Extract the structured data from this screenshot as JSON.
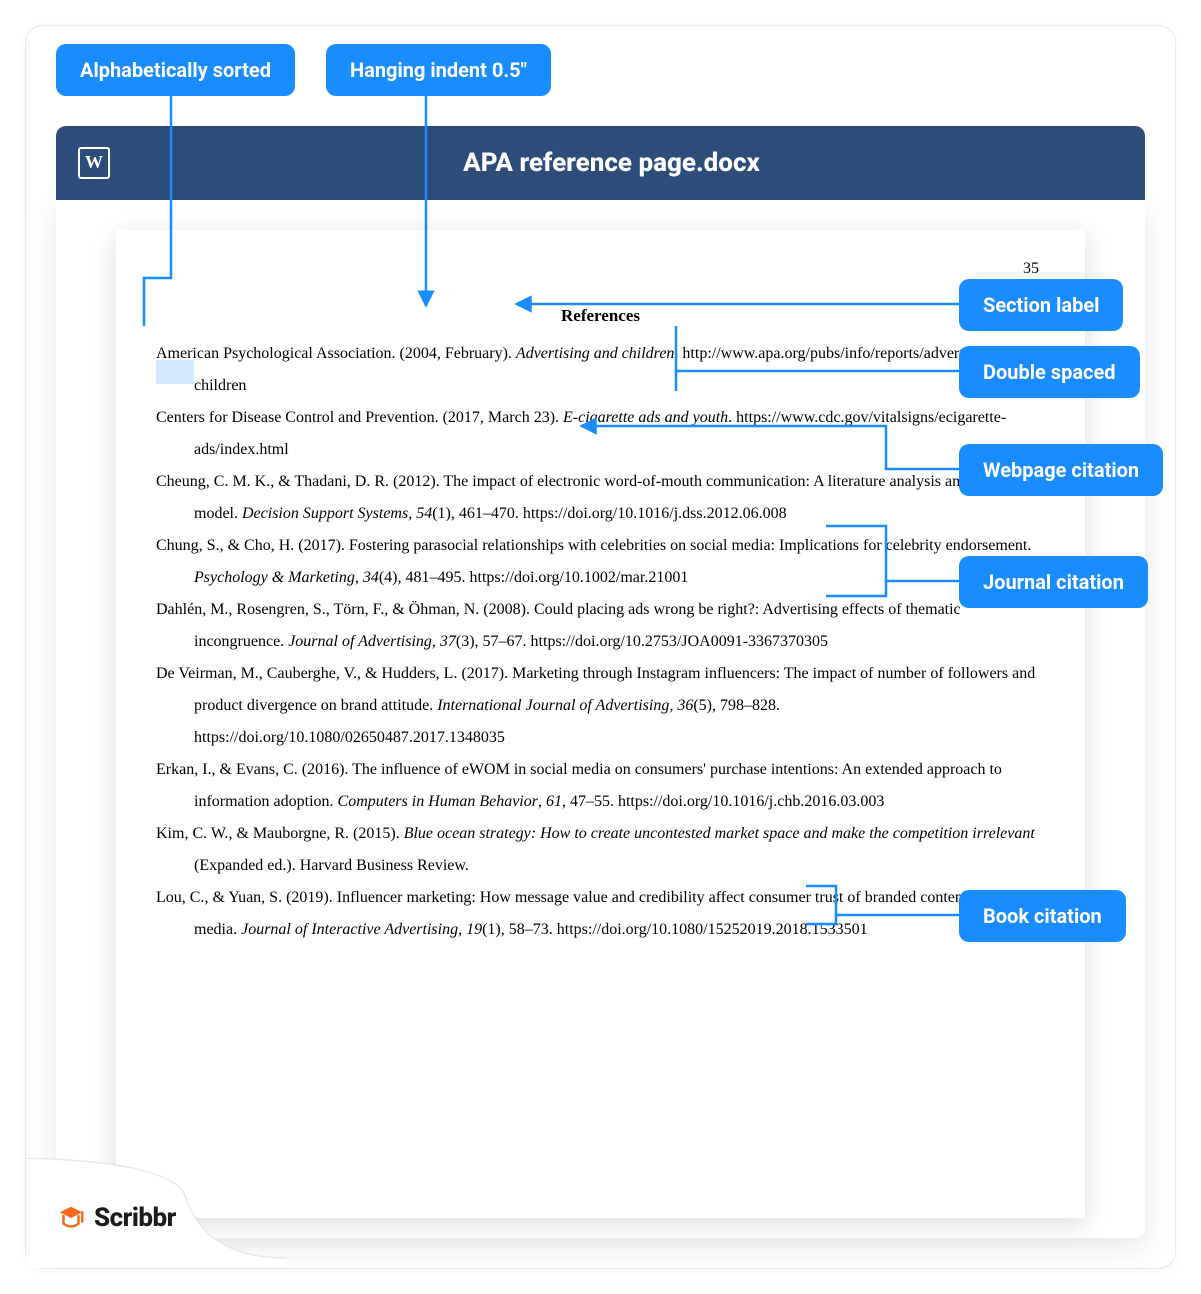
{
  "colors": {
    "pill_bg": "#198cff",
    "titlebar_bg": "#2c4c7a",
    "connector": "#198cff",
    "highlight": "rgba(25,140,255,0.18)",
    "logo_orange": "#f36a1f",
    "logo_text": "#1b1b1b"
  },
  "callouts": {
    "alpha": "Alphabetically sorted",
    "indent": "Hanging indent 0.5\"",
    "section": "Section label",
    "double": "Double spaced",
    "webpage": "Webpage citation",
    "journal": "Journal citation",
    "book": "Book citation"
  },
  "doc": {
    "filename": "APA reference page.docx",
    "page_number": "35",
    "heading": "References",
    "entries": [
      {
        "plain1": "American Psychological Association. (2004, February). ",
        "italic1": "Advertising and children",
        "plain2": ". http://www.apa.org/pubs/info/reports/advertising-children"
      },
      {
        "plain1": "Centers for Disease Control and Prevention. (2017, March 23). ",
        "italic1": "E-cigarette ads and youth",
        "plain2": ". https://www.cdc.gov/vitalsigns/ecigarette-ads/index.html"
      },
      {
        "plain1": "Cheung, C. M. K., & Thadani, D. R. (2012). The impact of electronic word-of-mouth communication: A literature analysis and integrative model. ",
        "italic1": "Decision Support Systems",
        "plain2": ", ",
        "italic2": "54",
        "plain3": "(1), 461–470. https://doi.org/10.1016/j.dss.2012.06.008"
      },
      {
        "plain1": "Chung, S., & Cho, H. (2017). Fostering parasocial relationships with celebrities on social media: Implications for celebrity endorsement. ",
        "italic1": "Psychology & Marketing",
        "plain2": ", ",
        "italic2": "34",
        "plain3": "(4), 481–495. https://doi.org/10.1002/mar.21001"
      },
      {
        "plain1": "Dahlén, M., Rosengren, S., Törn, F., & Öhman, N. (2008). Could placing ads wrong be right?: Advertising effects of thematic incongruence. ",
        "italic1": "Journal of Advertising",
        "plain2": ", ",
        "italic2": "37",
        "plain3": "(3), 57–67. https://doi.org/10.2753/JOA0091-3367370305"
      },
      {
        "plain1": "De Veirman, M., Cauberghe, V., & Hudders, L. (2017). Marketing through Instagram influencers: The impact of number of followers and product divergence on brand attitude. ",
        "italic1": "International Journal of Advertising",
        "plain2": ", ",
        "italic2": "36",
        "plain3": "(5), 798–828. https://doi.org/10.1080/02650487.2017.1348035"
      },
      {
        "plain1": "Erkan, I., & Evans, C. (2016). The influence of eWOM in social media on consumers' purchase intentions: An extended approach to information adoption. ",
        "italic1": "Computers in Human Behavior",
        "plain2": ", ",
        "italic2": "61",
        "plain3": ", 47–55. https://doi.org/10.1016/j.chb.2016.03.003"
      },
      {
        "plain1": "Kim, C. W., & Mauborgne, R. (2015). ",
        "italic1": "Blue ocean strategy: How to create uncontested market space and make the competition irrelevant",
        "plain2": " (Expanded ed.). Harvard Business Review."
      },
      {
        "plain1": "Lou, C., & Yuan, S. (2019). Influencer marketing: How message value and credibility affect consumer trust of branded content on social media. ",
        "italic1": "Journal of Interactive Advertising",
        "plain2": ", ",
        "italic2": "19",
        "plain3": "(1), 58–73. https://doi.org/10.1080/15252019.2018.1533501"
      }
    ]
  },
  "logo": {
    "text": "Scribbr"
  }
}
